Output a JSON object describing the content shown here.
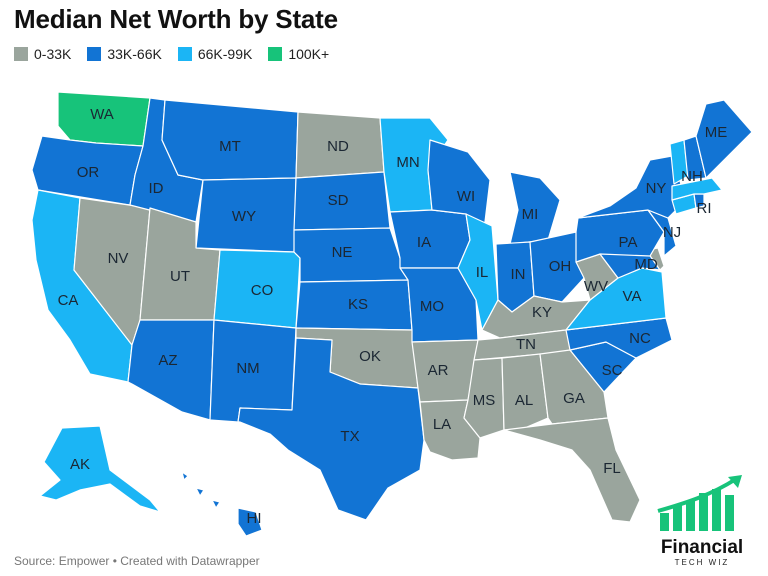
{
  "title": "Median Net Worth by State",
  "legend": [
    {
      "label": "0-33K",
      "color": "#9aa59d"
    },
    {
      "label": "33K-66K",
      "color": "#1274d4"
    },
    {
      "label": "66K-99K",
      "color": "#1bb5f5"
    },
    {
      "label": "100K+",
      "color": "#17c37a"
    }
  ],
  "states": {
    "WA": "100K+",
    "OR": "33K-66K",
    "CA": "66K-99K",
    "NV": "0-33K",
    "ID": "33K-66K",
    "MT": "33K-66K",
    "WY": "33K-66K",
    "UT": "0-33K",
    "CO": "66K-99K",
    "AZ": "33K-66K",
    "NM": "33K-66K",
    "ND": "0-33K",
    "SD": "33K-66K",
    "NE": "33K-66K",
    "KS": "33K-66K",
    "OK": "0-33K",
    "TX": "33K-66K",
    "MN": "66K-99K",
    "IA": "33K-66K",
    "MO": "33K-66K",
    "AR": "0-33K",
    "LA": "0-33K",
    "WI": "33K-66K",
    "IL": "66K-99K",
    "MI": "33K-66K",
    "IN": "33K-66K",
    "OH": "33K-66K",
    "KY": "0-33K",
    "TN": "0-33K",
    "MS": "0-33K",
    "AL": "0-33K",
    "GA": "0-33K",
    "FL": "0-33K",
    "SC": "33K-66K",
    "NC": "33K-66K",
    "VA": "66K-99K",
    "WV": "0-33K",
    "MD": "33K-66K",
    "DE": "0-33K",
    "PA": "33K-66K",
    "NJ": "33K-66K",
    "NY": "33K-66K",
    "CT": "66K-99K",
    "RI": "33K-66K",
    "MA": "66K-99K",
    "VT": "66K-99K",
    "NH": "33K-66K",
    "ME": "33K-66K",
    "AK": "66K-99K",
    "HI": "33K-66K"
  },
  "labels": {
    "WA": "WA",
    "OR": "OR",
    "CA": "CA",
    "NV": "NV",
    "ID": "ID",
    "MT": "MT",
    "WY": "WY",
    "UT": "UT",
    "CO": "CO",
    "AZ": "AZ",
    "NM": "NM",
    "ND": "ND",
    "SD": "SD",
    "NE": "NE",
    "KS": "KS",
    "OK": "OK",
    "TX": "TX",
    "MN": "MN",
    "IA": "IA",
    "MO": "MO",
    "AR": "AR",
    "LA": "LA",
    "WI": "WI",
    "IL": "IL",
    "MI": "MI",
    "IN": "IN",
    "OH": "OH",
    "KY": "KY",
    "TN": "TN",
    "MS": "MS",
    "AL": "AL",
    "GA": "GA",
    "FL": "FL",
    "SC": "SC",
    "NC": "NC",
    "VA": "VA",
    "WV": "WV",
    "MD": "MD",
    "PA": "PA",
    "NJ": "NJ",
    "NY": "NY",
    "RI": "RI",
    "NH": "NH",
    "ME": "ME",
    "AK": "AK",
    "HI": "HI"
  },
  "footer": "Source: Empower • Created with Datawrapper",
  "logo": {
    "name": "Financial",
    "sub": "TECH WIZ"
  }
}
